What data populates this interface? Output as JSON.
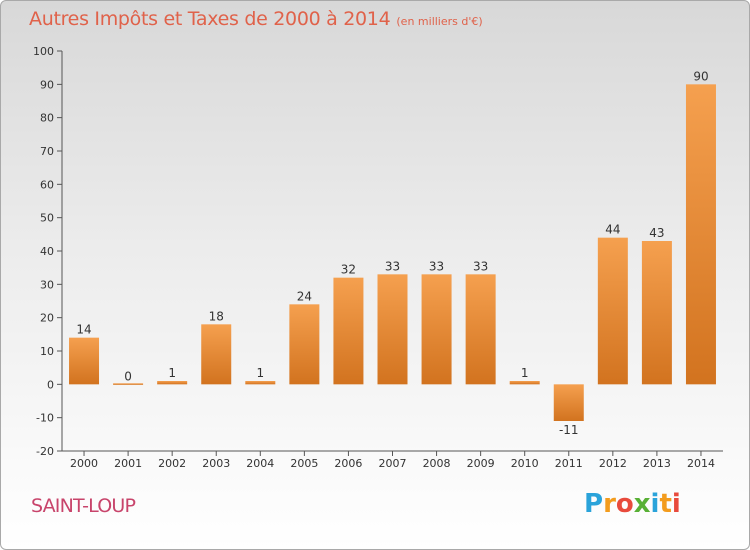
{
  "title": "Autres Impôts et Taxes de 2000 à 2014",
  "unit": "(en milliers d'€)",
  "place": "SAINT-LOUP",
  "logo": {
    "p": "P",
    "r": "r",
    "o": "o",
    "x": "x",
    "i": "i",
    "t": "t",
    "i2": "i"
  },
  "colors": {
    "bar_top": "#f5a04f",
    "bar_bottom": "#d2731f",
    "axis": "#555555",
    "title": "#e0624a",
    "place": "#c8446b"
  },
  "chart_data": {
    "type": "bar",
    "title": "Autres Impôts et Taxes de 2000 à 2014",
    "ylabel": "(en milliers d'€)",
    "xlabel": "",
    "ylim": [
      -20,
      100
    ],
    "yticks": [
      -20,
      -10,
      0,
      10,
      20,
      30,
      40,
      50,
      60,
      70,
      80,
      90,
      100
    ],
    "grid": false,
    "categories": [
      "2000",
      "2001",
      "2002",
      "2003",
      "2004",
      "2005",
      "2006",
      "2007",
      "2008",
      "2009",
      "2010",
      "2011",
      "2012",
      "2013",
      "2014"
    ],
    "values": [
      14,
      0,
      1,
      18,
      1,
      24,
      32,
      33,
      33,
      33,
      1,
      -11,
      44,
      43,
      90
    ],
    "labels": [
      "14",
      "0",
      "1",
      "18",
      "1",
      "24",
      "32",
      "33",
      "33",
      "33",
      "1",
      "-11",
      "44",
      "43",
      "90"
    ]
  }
}
